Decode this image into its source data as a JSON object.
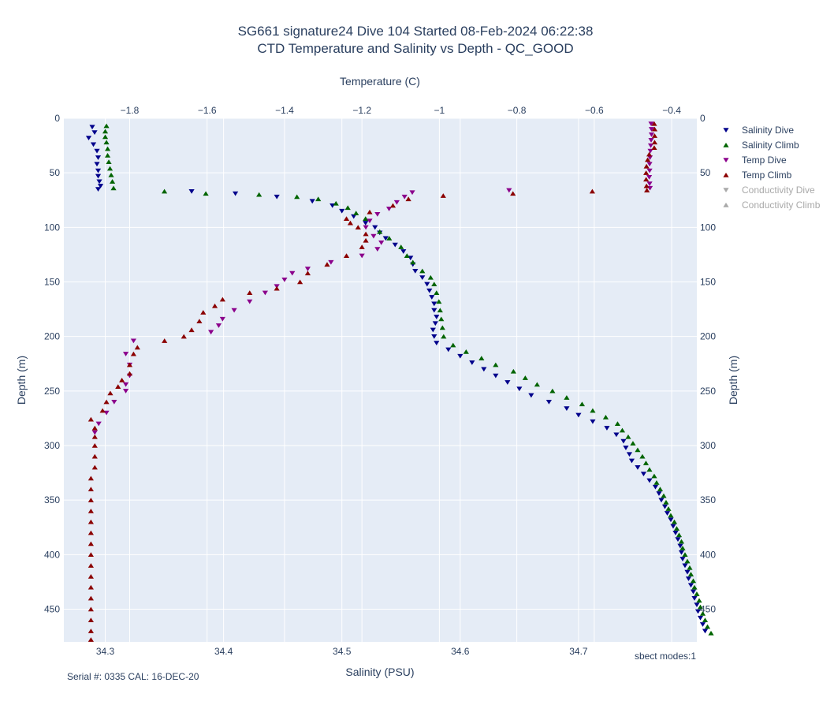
{
  "chart_data": {
    "type": "scatter",
    "title_lines": [
      "SG661 signature24 Dive 104 Started 08-Feb-2024 06:22:38",
      "CTD Temperature and Salinity vs Depth - QC_GOOD"
    ],
    "xlabel_bottom": "Salinity (PSU)",
    "xlabel_top": "Temperature (C)",
    "ylabel": "Depth (m)",
    "ylabel_right": "Depth (m)",
    "x_bottom_range": [
      34.265,
      34.8
    ],
    "x_top_range": [
      -1.97,
      -0.335
    ],
    "y_range": [
      480,
      0
    ],
    "y_reversed": true,
    "grid": true,
    "legend_position": "right",
    "x_bottom_ticks": [
      {
        "v": 34.3,
        "label": "34.3"
      },
      {
        "v": 34.4,
        "label": "34.4"
      },
      {
        "v": 34.5,
        "label": "34.5"
      },
      {
        "v": 34.6,
        "label": "34.6"
      },
      {
        "v": 34.7,
        "label": "34.7"
      }
    ],
    "x_top_ticks": [
      {
        "v": -1.8,
        "label": "−1.8"
      },
      {
        "v": -1.6,
        "label": "−1.6"
      },
      {
        "v": -1.4,
        "label": "−1.4"
      },
      {
        "v": -1.2,
        "label": "−1.2"
      },
      {
        "v": -1.0,
        "label": "−1"
      },
      {
        "v": -0.8,
        "label": "−0.8"
      },
      {
        "v": -0.6,
        "label": "−0.6"
      },
      {
        "v": -0.4,
        "label": "−0.4"
      }
    ],
    "y_ticks": [
      {
        "v": 0,
        "label": "0"
      },
      {
        "v": 50,
        "label": "50"
      },
      {
        "v": 100,
        "label": "100"
      },
      {
        "v": 150,
        "label": "150"
      },
      {
        "v": 200,
        "label": "200"
      },
      {
        "v": 250,
        "label": "250"
      },
      {
        "v": 300,
        "label": "300"
      },
      {
        "v": 350,
        "label": "350"
      },
      {
        "v": 400,
        "label": "400"
      },
      {
        "v": 450,
        "label": "450"
      }
    ],
    "series": [
      {
        "name": "Salinity Dive",
        "axis": "salinity",
        "color": "#00008b",
        "symbol": "triangle-down",
        "visible": true,
        "points": [
          [
            34.289,
            8
          ],
          [
            34.291,
            13
          ],
          [
            34.286,
            18
          ],
          [
            34.29,
            24
          ],
          [
            34.293,
            30
          ],
          [
            34.294,
            36
          ],
          [
            34.293,
            42
          ],
          [
            34.294,
            48
          ],
          [
            34.294,
            53
          ],
          [
            34.295,
            58
          ],
          [
            34.296,
            62
          ],
          [
            34.294,
            65
          ],
          [
            34.373,
            67
          ],
          [
            34.41,
            69
          ],
          [
            34.445,
            72
          ],
          [
            34.475,
            76
          ],
          [
            34.492,
            80
          ],
          [
            34.5,
            85
          ],
          [
            34.51,
            90
          ],
          [
            34.52,
            96
          ],
          [
            34.528,
            100
          ],
          [
            34.532,
            105
          ],
          [
            34.537,
            110
          ],
          [
            34.545,
            116
          ],
          [
            34.552,
            122
          ],
          [
            34.558,
            128
          ],
          [
            34.56,
            134
          ],
          [
            34.562,
            140
          ],
          [
            34.568,
            146
          ],
          [
            34.572,
            152
          ],
          [
            34.574,
            158
          ],
          [
            34.576,
            164
          ],
          [
            34.578,
            170
          ],
          [
            34.578,
            176
          ],
          [
            34.58,
            182
          ],
          [
            34.579,
            188
          ],
          [
            34.577,
            194
          ],
          [
            34.578,
            200
          ],
          [
            34.58,
            206
          ],
          [
            34.59,
            212
          ],
          [
            34.6,
            218
          ],
          [
            34.61,
            224
          ],
          [
            34.62,
            230
          ],
          [
            34.63,
            236
          ],
          [
            34.64,
            242
          ],
          [
            34.65,
            248
          ],
          [
            34.66,
            254
          ],
          [
            34.675,
            260
          ],
          [
            34.69,
            266
          ],
          [
            34.7,
            272
          ],
          [
            34.712,
            278
          ],
          [
            34.724,
            284
          ],
          [
            34.732,
            290
          ],
          [
            34.738,
            296
          ],
          [
            34.74,
            302
          ],
          [
            34.743,
            308
          ],
          [
            34.745,
            314
          ],
          [
            34.75,
            320
          ],
          [
            34.755,
            326
          ],
          [
            34.76,
            332
          ],
          [
            34.765,
            338
          ],
          [
            34.768,
            344
          ],
          [
            34.77,
            350
          ],
          [
            34.773,
            356
          ],
          [
            34.775,
            362
          ],
          [
            34.778,
            368
          ],
          [
            34.78,
            374
          ],
          [
            34.782,
            380
          ],
          [
            34.784,
            386
          ],
          [
            34.786,
            392
          ],
          [
            34.787,
            398
          ],
          [
            34.788,
            404
          ],
          [
            34.79,
            410
          ],
          [
            34.792,
            416
          ],
          [
            34.793,
            422
          ],
          [
            34.795,
            428
          ],
          [
            34.797,
            434
          ],
          [
            34.798,
            440
          ],
          [
            34.8,
            446
          ],
          [
            34.801,
            452
          ],
          [
            34.803,
            458
          ],
          [
            34.805,
            464
          ],
          [
            34.807,
            470
          ]
        ]
      },
      {
        "name": "Salinity Climb",
        "axis": "salinity",
        "color": "#006400",
        "symbol": "triangle-up",
        "visible": true,
        "points": [
          [
            34.301,
            7
          ],
          [
            34.3,
            12
          ],
          [
            34.3,
            17
          ],
          [
            34.301,
            22
          ],
          [
            34.302,
            28
          ],
          [
            34.302,
            34
          ],
          [
            34.303,
            40
          ],
          [
            34.304,
            46
          ],
          [
            34.305,
            52
          ],
          [
            34.306,
            58
          ],
          [
            34.307,
            64
          ],
          [
            34.35,
            67
          ],
          [
            34.385,
            69
          ],
          [
            34.43,
            70
          ],
          [
            34.462,
            72
          ],
          [
            34.48,
            74
          ],
          [
            34.495,
            78
          ],
          [
            34.505,
            82
          ],
          [
            34.512,
            87
          ],
          [
            34.52,
            92
          ],
          [
            34.532,
            104
          ],
          [
            34.54,
            110
          ],
          [
            34.55,
            118
          ],
          [
            34.555,
            126
          ],
          [
            34.56,
            132
          ],
          [
            34.568,
            140
          ],
          [
            34.575,
            146
          ],
          [
            34.578,
            152
          ],
          [
            34.58,
            160
          ],
          [
            34.582,
            168
          ],
          [
            34.583,
            176
          ],
          [
            34.584,
            184
          ],
          [
            34.585,
            192
          ],
          [
            34.586,
            200
          ],
          [
            34.594,
            208
          ],
          [
            34.605,
            214
          ],
          [
            34.618,
            220
          ],
          [
            34.63,
            226
          ],
          [
            34.645,
            232
          ],
          [
            34.655,
            238
          ],
          [
            34.665,
            244
          ],
          [
            34.678,
            250
          ],
          [
            34.69,
            256
          ],
          [
            34.703,
            262
          ],
          [
            34.712,
            268
          ],
          [
            34.723,
            274
          ],
          [
            34.733,
            280
          ],
          [
            34.737,
            286
          ],
          [
            34.742,
            292
          ],
          [
            34.746,
            298
          ],
          [
            34.75,
            304
          ],
          [
            34.754,
            310
          ],
          [
            34.757,
            316
          ],
          [
            34.76,
            322
          ],
          [
            34.764,
            328
          ],
          [
            34.766,
            334
          ],
          [
            34.769,
            340
          ],
          [
            34.772,
            346
          ],
          [
            34.774,
            352
          ],
          [
            34.776,
            358
          ],
          [
            34.778,
            364
          ],
          [
            34.781,
            370
          ],
          [
            34.783,
            376
          ],
          [
            34.785,
            382
          ],
          [
            34.787,
            388
          ],
          [
            34.788,
            394
          ],
          [
            34.79,
            400
          ],
          [
            34.792,
            406
          ],
          [
            34.794,
            412
          ],
          [
            34.795,
            418
          ],
          [
            34.797,
            424
          ],
          [
            34.798,
            430
          ],
          [
            34.8,
            436
          ],
          [
            34.802,
            442
          ],
          [
            34.803,
            448
          ],
          [
            34.805,
            454
          ],
          [
            34.807,
            460
          ],
          [
            34.809,
            466
          ],
          [
            34.812,
            472
          ]
        ]
      },
      {
        "name": "Temp Dive",
        "axis": "temperature",
        "color": "#8b008b",
        "symbol": "triangle-down",
        "visible": true,
        "points": [
          [
            -0.453,
            5
          ],
          [
            -0.452,
            10
          ],
          [
            -0.452,
            15
          ],
          [
            -0.453,
            20
          ],
          [
            -0.454,
            25
          ],
          [
            -0.455,
            30
          ],
          [
            -0.456,
            36
          ],
          [
            -0.457,
            42
          ],
          [
            -0.457,
            48
          ],
          [
            -0.458,
            54
          ],
          [
            -0.457,
            60
          ],
          [
            -0.456,
            64
          ],
          [
            -0.82,
            66
          ],
          [
            -1.07,
            68
          ],
          [
            -1.09,
            72
          ],
          [
            -1.11,
            77
          ],
          [
            -1.13,
            83
          ],
          [
            -1.16,
            88
          ],
          [
            -1.18,
            94
          ],
          [
            -1.19,
            100
          ],
          [
            -1.17,
            108
          ],
          [
            -1.15,
            114
          ],
          [
            -1.16,
            120
          ],
          [
            -1.2,
            126
          ],
          [
            -1.28,
            132
          ],
          [
            -1.34,
            138
          ],
          [
            -1.38,
            142
          ],
          [
            -1.4,
            148
          ],
          [
            -1.42,
            154
          ],
          [
            -1.45,
            160
          ],
          [
            -1.49,
            168
          ],
          [
            -1.53,
            176
          ],
          [
            -1.56,
            184
          ],
          [
            -1.57,
            190
          ],
          [
            -1.59,
            196
          ],
          [
            -1.79,
            204
          ],
          [
            -1.81,
            216
          ],
          [
            -1.8,
            226
          ],
          [
            -1.8,
            236
          ],
          [
            -1.81,
            244
          ],
          [
            -1.81,
            250
          ],
          [
            -1.84,
            260
          ],
          [
            -1.86,
            270
          ],
          [
            -1.88,
            280
          ],
          [
            -1.89,
            288
          ]
        ]
      },
      {
        "name": "Temp Climb",
        "axis": "temperature",
        "color": "#8b0000",
        "symbol": "triangle-up",
        "visible": true,
        "points": [
          [
            -0.445,
            5
          ],
          [
            -0.444,
            10
          ],
          [
            -0.444,
            16
          ],
          [
            -0.444,
            22
          ],
          [
            -0.445,
            27
          ],
          [
            -0.458,
            33
          ],
          [
            -0.462,
            38
          ],
          [
            -0.465,
            44
          ],
          [
            -0.466,
            50
          ],
          [
            -0.466,
            56
          ],
          [
            -0.465,
            62
          ],
          [
            -0.464,
            66
          ],
          [
            -0.605,
            67
          ],
          [
            -0.81,
            69
          ],
          [
            -0.99,
            71
          ],
          [
            -1.08,
            74
          ],
          [
            -1.12,
            80
          ],
          [
            -1.18,
            86
          ],
          [
            -1.24,
            92
          ],
          [
            -1.23,
            96
          ],
          [
            -1.21,
            100
          ],
          [
            -1.19,
            106
          ],
          [
            -1.19,
            112
          ],
          [
            -1.2,
            118
          ],
          [
            -1.24,
            126
          ],
          [
            -1.29,
            134
          ],
          [
            -1.34,
            142
          ],
          [
            -1.36,
            150
          ],
          [
            -1.42,
            156
          ],
          [
            -1.49,
            160
          ],
          [
            -1.56,
            166
          ],
          [
            -1.58,
            172
          ],
          [
            -1.61,
            178
          ],
          [
            -1.62,
            186
          ],
          [
            -1.64,
            194
          ],
          [
            -1.66,
            200
          ],
          [
            -1.71,
            204
          ],
          [
            -1.78,
            210
          ],
          [
            -1.79,
            216
          ],
          [
            -1.8,
            226
          ],
          [
            -1.8,
            234
          ],
          [
            -1.82,
            240
          ],
          [
            -1.83,
            246
          ],
          [
            -1.85,
            252
          ],
          [
            -1.86,
            260
          ],
          [
            -1.87,
            268
          ],
          [
            -1.9,
            276
          ],
          [
            -1.89,
            284
          ],
          [
            -1.89,
            292
          ],
          [
            -1.89,
            300
          ],
          [
            -1.89,
            310
          ],
          [
            -1.89,
            320
          ],
          [
            -1.9,
            330
          ],
          [
            -1.9,
            340
          ],
          [
            -1.9,
            350
          ],
          [
            -1.9,
            360
          ],
          [
            -1.9,
            370
          ],
          [
            -1.9,
            380
          ],
          [
            -1.9,
            390
          ],
          [
            -1.9,
            400
          ],
          [
            -1.9,
            410
          ],
          [
            -1.9,
            420
          ],
          [
            -1.9,
            430
          ],
          [
            -1.9,
            440
          ],
          [
            -1.9,
            450
          ],
          [
            -1.9,
            460
          ],
          [
            -1.9,
            470
          ],
          [
            -1.9,
            478
          ]
        ]
      },
      {
        "name": "Conductivity Dive",
        "axis": "conductivity",
        "color": "#a9a9a9",
        "symbol": "triangle-down",
        "visible": false,
        "points": []
      },
      {
        "name": "Conductivity Climb",
        "axis": "conductivity",
        "color": "#a9a9a9",
        "symbol": "triangle-up",
        "visible": false,
        "points": []
      }
    ],
    "annotations": {
      "mode_note": "sbect modes:1",
      "serial_note": "Serial #: 0335  CAL: 16-DEC-20"
    }
  },
  "colors": {
    "plot_background": "#e5ecf6",
    "grid": "#ffffff",
    "text": "#2a3f5f",
    "legend_off_text": "#a9a9a9"
  }
}
